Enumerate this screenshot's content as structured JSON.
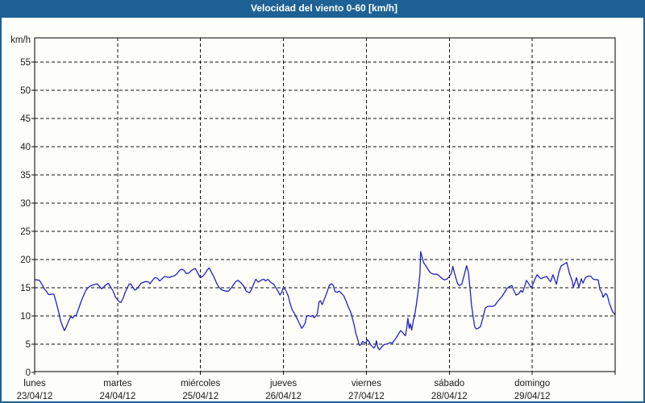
{
  "window": {
    "title": "Velocidad del viento 0-60 [km/h]"
  },
  "colors": {
    "frame_blue": "#1e6195",
    "title_text": "#ffffff",
    "line_blue": "#2222c0",
    "grid_black": "#111111",
    "label_text": "#1a1a1a",
    "plot_background": "#fdfdfa"
  },
  "chart_data": {
    "type": "line",
    "title": "Velocidad del viento 0-60 [km/h]",
    "ylabel": "km/h",
    "xlabel": "",
    "ylim": [
      0,
      60
    ],
    "xlim_hours": [
      0,
      168
    ],
    "grid": true,
    "legend_position": "none",
    "yticks": [
      0,
      5,
      10,
      15,
      20,
      25,
      30,
      35,
      40,
      45,
      50,
      55
    ],
    "day_labels": [
      {
        "name": "lunes",
        "date": "23/04/12"
      },
      {
        "name": "martes",
        "date": "24/04/12"
      },
      {
        "name": "miércoles",
        "date": "25/04/12"
      },
      {
        "name": "jueves",
        "date": "26/04/12"
      },
      {
        "name": "viernes",
        "date": "27/04/12"
      },
      {
        "name": "sábado",
        "date": "28/04/12"
      },
      {
        "name": "domingo",
        "date": "29/04/12"
      }
    ],
    "series": [
      {
        "name": "Velocidad del viento",
        "units": "km/h",
        "color": "#2222c0",
        "points": [
          [
            0,
            16.4
          ],
          [
            0.7,
            16.4
          ],
          [
            1.4,
            16.3
          ],
          [
            2.1,
            15.6
          ],
          [
            2.8,
            14.8
          ],
          [
            3.5,
            14.3
          ],
          [
            4,
            13.8
          ],
          [
            4.7,
            13.8
          ],
          [
            5.1,
            13.9
          ],
          [
            5.6,
            13.8
          ],
          [
            6.1,
            12.7
          ],
          [
            6.8,
            11.1
          ],
          [
            7.5,
            9.2
          ],
          [
            8.2,
            8
          ],
          [
            8.6,
            7.4
          ],
          [
            9.1,
            8
          ],
          [
            9.8,
            9.1
          ],
          [
            10.5,
            9.9
          ],
          [
            11,
            9.6
          ],
          [
            11.5,
            10.1
          ],
          [
            11.9,
            10
          ],
          [
            12.6,
            11.1
          ],
          [
            13.3,
            12.3
          ],
          [
            14,
            13.4
          ],
          [
            14.7,
            14.4
          ],
          [
            15.4,
            15
          ],
          [
            16.1,
            15.3
          ],
          [
            16.8,
            15.5
          ],
          [
            17.5,
            15.6
          ],
          [
            18,
            15.7
          ],
          [
            18.7,
            15.3
          ],
          [
            19.4,
            14.8
          ],
          [
            20.1,
            15.2
          ],
          [
            20.8,
            15.6
          ],
          [
            21.3,
            15.8
          ],
          [
            22,
            15.1
          ],
          [
            22.7,
            14.4
          ],
          [
            23.4,
            13.3
          ],
          [
            24.1,
            12.8
          ],
          [
            24.5,
            12.5
          ],
          [
            25,
            12.4
          ],
          [
            25.7,
            13.3
          ],
          [
            26.2,
            14.2
          ],
          [
            26.9,
            15.1
          ],
          [
            27.3,
            15.6
          ],
          [
            27.8,
            15.7
          ],
          [
            28.5,
            15
          ],
          [
            29,
            14.6
          ],
          [
            29.4,
            14.7
          ],
          [
            30.1,
            15.2
          ],
          [
            30.8,
            15.8
          ],
          [
            31.6,
            16
          ],
          [
            32.3,
            16.1
          ],
          [
            33,
            16
          ],
          [
            33.4,
            15.7
          ],
          [
            34.1,
            16.3
          ],
          [
            34.8,
            16.8
          ],
          [
            35.5,
            16.7
          ],
          [
            36.2,
            16.2
          ],
          [
            36.9,
            16.6
          ],
          [
            37.6,
            17
          ],
          [
            38.3,
            16.9
          ],
          [
            39,
            16.8
          ],
          [
            39.7,
            17
          ],
          [
            40.4,
            17.1
          ],
          [
            41.1,
            17.4
          ],
          [
            41.8,
            18
          ],
          [
            42.5,
            18.3
          ],
          [
            43.2,
            18.1
          ],
          [
            43.9,
            17.5
          ],
          [
            44.6,
            17.6
          ],
          [
            45.3,
            18
          ],
          [
            46,
            18.3
          ],
          [
            46.5,
            18.4
          ],
          [
            47.2,
            17.6
          ],
          [
            47.9,
            16.8
          ],
          [
            48.6,
            17
          ],
          [
            49.3,
            17.5
          ],
          [
            50,
            18.2
          ],
          [
            50.5,
            18.5
          ],
          [
            51.2,
            17.7
          ],
          [
            51.9,
            16.9
          ],
          [
            52.6,
            15.9
          ],
          [
            53.3,
            15.1
          ],
          [
            54,
            14.7
          ],
          [
            54.7,
            14.5
          ],
          [
            55.4,
            14.4
          ],
          [
            56.1,
            14.4
          ],
          [
            56.8,
            14.9
          ],
          [
            57.5,
            15.5
          ],
          [
            58.2,
            16.1
          ],
          [
            58.9,
            16.3
          ],
          [
            59.8,
            15.8
          ],
          [
            60.5,
            15.3
          ],
          [
            61.2,
            14.4
          ],
          [
            62.2,
            14.1
          ],
          [
            62.9,
            14.9
          ],
          [
            63.6,
            16
          ],
          [
            64,
            16.5
          ],
          [
            64.7,
            16
          ],
          [
            65.7,
            16.4
          ],
          [
            66.4,
            16.5
          ],
          [
            66.8,
            16.2
          ],
          [
            67.5,
            16.5
          ],
          [
            68.2,
            16
          ],
          [
            69.2,
            15.6
          ],
          [
            69.9,
            14.9
          ],
          [
            70.6,
            14.2
          ],
          [
            71,
            13.7
          ],
          [
            71.5,
            14.2
          ],
          [
            72,
            15.1
          ],
          [
            72.7,
            14.5
          ],
          [
            73.4,
            13.5
          ],
          [
            73.8,
            12.5
          ],
          [
            74.5,
            11.1
          ],
          [
            75.2,
            10.4
          ],
          [
            76.2,
            9.2
          ],
          [
            76.9,
            8.3
          ],
          [
            77.3,
            7.8
          ],
          [
            77.8,
            8.2
          ],
          [
            78.3,
            8.8
          ],
          [
            78.7,
            9.9
          ],
          [
            79.2,
            10.1
          ],
          [
            79.9,
            9.9
          ],
          [
            80.4,
            10.1
          ],
          [
            80.8,
            9.7
          ],
          [
            81.3,
            9.9
          ],
          [
            81.8,
            10.4
          ],
          [
            82.3,
            12.5
          ],
          [
            82.7,
            12.7
          ],
          [
            83.2,
            12
          ],
          [
            83.9,
            13.1
          ],
          [
            84.6,
            14.2
          ],
          [
            85.3,
            15.5
          ],
          [
            86,
            15.7
          ],
          [
            86.5,
            15.3
          ],
          [
            86.9,
            14.3
          ],
          [
            87.6,
            14.2
          ],
          [
            88.1,
            14.4
          ],
          [
            88.8,
            14
          ],
          [
            89.5,
            13.5
          ],
          [
            90.2,
            12.5
          ],
          [
            90.7,
            11.7
          ],
          [
            91.4,
            10.8
          ],
          [
            91.8,
            10
          ],
          [
            92.5,
            8.3
          ],
          [
            93,
            6.8
          ],
          [
            93.5,
            5.9
          ],
          [
            93.9,
            4.8
          ],
          [
            94.4,
            4.9
          ],
          [
            94.9,
            5.5
          ],
          [
            95.3,
            5.3
          ],
          [
            95.8,
            5.2
          ],
          [
            96.3,
            5.8
          ],
          [
            96.8,
            5.4
          ],
          [
            97.2,
            4.9
          ],
          [
            97.7,
            4.6
          ],
          [
            98.2,
            4.3
          ],
          [
            98.6,
            4.7
          ],
          [
            98.9,
            5.6
          ],
          [
            99.3,
            4.4
          ],
          [
            99.8,
            4
          ],
          [
            100.3,
            4.4
          ],
          [
            101,
            4.9
          ],
          [
            101.7,
            5
          ],
          [
            102.4,
            5.1
          ],
          [
            102.8,
            5.3
          ],
          [
            103.5,
            5.2
          ],
          [
            104,
            5.6
          ],
          [
            104.7,
            6.2
          ],
          [
            105.4,
            6.9
          ],
          [
            105.9,
            7.4
          ],
          [
            106.3,
            7.2
          ],
          [
            106.8,
            6.8
          ],
          [
            107.3,
            6.5
          ],
          [
            107.7,
            8
          ],
          [
            108,
            9.6
          ],
          [
            108.4,
            7.8
          ],
          [
            108.7,
            8.6
          ],
          [
            109.1,
            7.5
          ],
          [
            109.6,
            9.2
          ],
          [
            110.1,
            10.6
          ],
          [
            110.5,
            12.2
          ],
          [
            111,
            14.5
          ],
          [
            111.5,
            17.5
          ],
          [
            111.7,
            21.4
          ],
          [
            112.2,
            20.2
          ],
          [
            112.6,
            19.4
          ],
          [
            113.1,
            19
          ],
          [
            113.6,
            18.5
          ],
          [
            114.3,
            17.8
          ],
          [
            115,
            17.5
          ],
          [
            115.7,
            17.4
          ],
          [
            116.4,
            17.4
          ],
          [
            117.1,
            17.1
          ],
          [
            117.8,
            16.7
          ],
          [
            118.5,
            16.4
          ],
          [
            119.2,
            16.5
          ],
          [
            119.9,
            16.9
          ],
          [
            120.6,
            17.6
          ],
          [
            121,
            18.8
          ],
          [
            121.5,
            17.6
          ],
          [
            122,
            16.5
          ],
          [
            122.4,
            15.7
          ],
          [
            122.9,
            15.4
          ],
          [
            123.6,
            15.6
          ],
          [
            124.3,
            17.2
          ],
          [
            125,
            18.9
          ],
          [
            125.5,
            17.8
          ],
          [
            126,
            14.9
          ],
          [
            126.4,
            12.1
          ],
          [
            126.9,
            9.8
          ],
          [
            127.4,
            8
          ],
          [
            127.8,
            7.7
          ],
          [
            128.3,
            7.8
          ],
          [
            129,
            8.1
          ],
          [
            129.7,
            9.6
          ],
          [
            130.4,
            11.4
          ],
          [
            131.1,
            11.7
          ],
          [
            131.8,
            11.7
          ],
          [
            132.5,
            11.7
          ],
          [
            133.2,
            11.9
          ],
          [
            133.9,
            12.5
          ],
          [
            134.6,
            13
          ],
          [
            135.3,
            13.5
          ],
          [
            136,
            14.2
          ],
          [
            136.7,
            14.9
          ],
          [
            137.4,
            15.2
          ],
          [
            138.1,
            15.4
          ],
          [
            138.6,
            14.6
          ],
          [
            139.3,
            13.7
          ],
          [
            140,
            13.9
          ],
          [
            140.7,
            14.5
          ],
          [
            141.2,
            14.2
          ],
          [
            141.9,
            15.4
          ],
          [
            142.3,
            16.3
          ],
          [
            143,
            15.7
          ],
          [
            143.5,
            15.1
          ],
          [
            144,
            15.3
          ],
          [
            144.7,
            16.4
          ],
          [
            145.4,
            17.3
          ],
          [
            145.8,
            17
          ],
          [
            146.5,
            16.6
          ],
          [
            147.2,
            16.8
          ],
          [
            148.2,
            17
          ],
          [
            148.9,
            16.4
          ],
          [
            149.3,
            16.1
          ],
          [
            150,
            17.3
          ],
          [
            150.5,
            16.4
          ],
          [
            151,
            15.6
          ],
          [
            151.7,
            17.7
          ],
          [
            152.4,
            18.9
          ],
          [
            153.3,
            19.2
          ],
          [
            154,
            19.5
          ],
          [
            154.7,
            17.7
          ],
          [
            155.6,
            16.1
          ],
          [
            155.9,
            15.1
          ],
          [
            156.3,
            15.8
          ],
          [
            156.8,
            16.8
          ],
          [
            157.5,
            15.1
          ],
          [
            158.2,
            16.6
          ],
          [
            158.7,
            15.8
          ],
          [
            159.4,
            16.8
          ],
          [
            160.3,
            17.1
          ],
          [
            161,
            17
          ],
          [
            161.7,
            16.5
          ],
          [
            162.7,
            16.4
          ],
          [
            163.1,
            16.4
          ],
          [
            163.6,
            14.7
          ],
          [
            164.1,
            14.2
          ],
          [
            164.5,
            13.3
          ],
          [
            165.2,
            14
          ],
          [
            165.7,
            13.7
          ],
          [
            166.4,
            12.1
          ],
          [
            167.3,
            10.7
          ],
          [
            168,
            10.2
          ]
        ]
      }
    ]
  }
}
